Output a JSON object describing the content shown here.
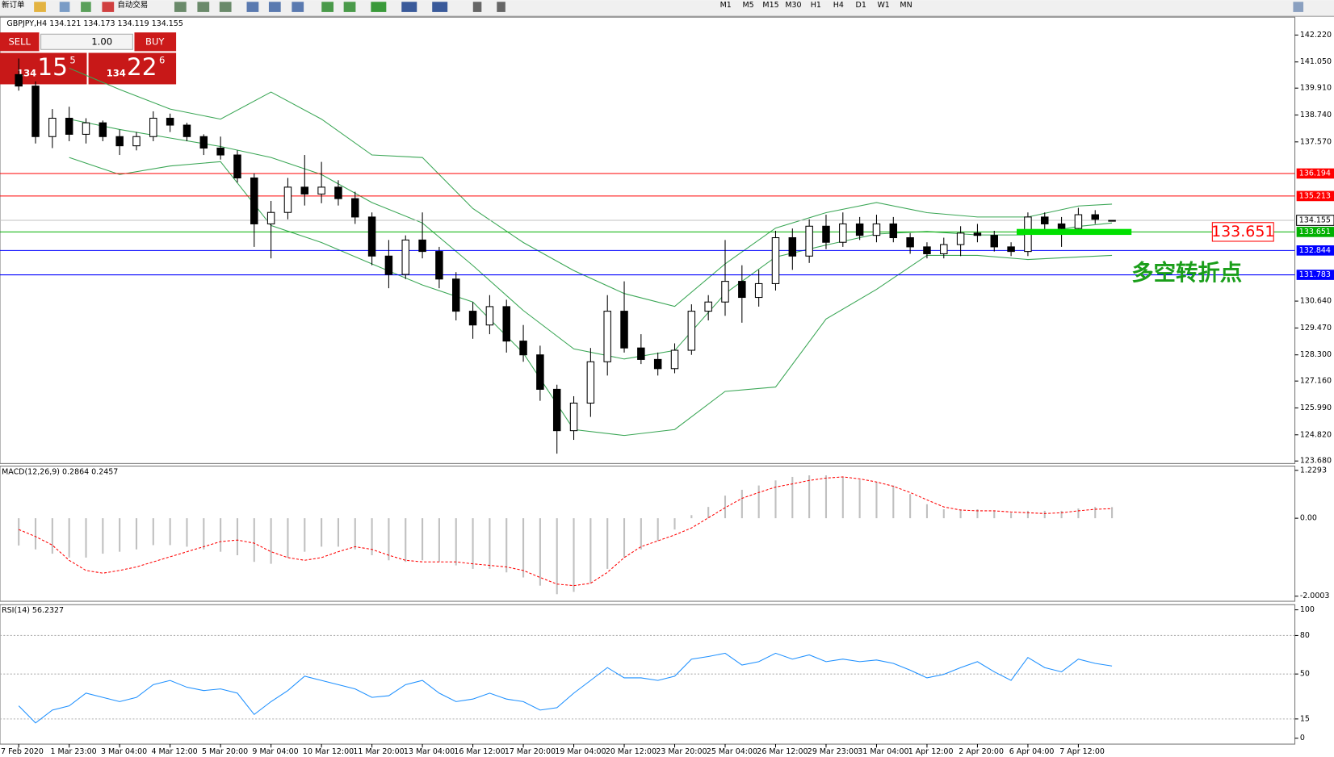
{
  "toolbar": {
    "new_order": "新订单",
    "auto_trading": "自动交易",
    "timeframes": [
      "M1",
      "M5",
      "M15",
      "M30",
      "H1",
      "H4",
      "D1",
      "W1",
      "MN"
    ]
  },
  "trade_panel": {
    "sell": "SELL",
    "lots": "1.00",
    "buy": "BUY",
    "bid": {
      "big": "134",
      "mid": "15",
      "small": "5"
    },
    "ask": {
      "big": "134",
      "mid": "22",
      "small": "6"
    }
  },
  "chart_data": [
    {
      "type": "candlestick",
      "title": "GBPJPY,H4  134.121 134.173 134.119 134.155",
      "categories": [
        "7 Feb 2020",
        null,
        null,
        "1 Mar 23:00",
        null,
        null,
        "3 Mar 04:00",
        null,
        null,
        "4 Mar 12:00",
        null,
        null,
        "5 Mar 20:00",
        null,
        null,
        "9 Mar 04:00",
        null,
        null,
        "10 Mar 12:00",
        null,
        null,
        "11 Mar 20:00",
        null,
        null,
        "13 Mar 04:00",
        null,
        null,
        "16 Mar 12:00",
        null,
        null,
        "17 Mar 20:00",
        null,
        null,
        "19 Mar 04:00",
        null,
        null,
        "20 Mar 12:00",
        null,
        null,
        "23 Mar 20:00",
        null,
        null,
        "25 Mar 04:00",
        null,
        null,
        "26 Mar 12:00",
        null,
        null,
        "29 Mar 23:00",
        null,
        null,
        "31 Mar 04:00",
        null,
        null,
        "1 Apr 12:00",
        null,
        null,
        "2 Apr 20:00",
        null,
        null,
        "6 Apr 04:00",
        null,
        null,
        "7 Apr 12:00",
        null,
        null
      ],
      "ohlc": [
        [
          140.5,
          141.2,
          139.8,
          140.0
        ],
        [
          140.0,
          140.2,
          137.5,
          137.8
        ],
        [
          137.8,
          139.0,
          137.3,
          138.6
        ],
        [
          138.6,
          139.1,
          137.6,
          137.9
        ],
        [
          137.9,
          138.6,
          137.5,
          138.4
        ],
        [
          138.4,
          138.5,
          137.6,
          137.8
        ],
        [
          137.8,
          138.1,
          137.0,
          137.4
        ],
        [
          137.4,
          138.0,
          137.2,
          137.8
        ],
        [
          137.8,
          138.9,
          137.6,
          138.6
        ],
        [
          138.6,
          138.8,
          138.0,
          138.3
        ],
        [
          138.3,
          138.4,
          137.6,
          137.8
        ],
        [
          137.8,
          137.9,
          137.0,
          137.3
        ],
        [
          137.3,
          137.8,
          136.8,
          137.0
        ],
        [
          137.0,
          137.2,
          135.8,
          136.0
        ],
        [
          136.0,
          136.2,
          133.0,
          134.0
        ],
        [
          134.0,
          135.0,
          132.5,
          134.5
        ],
        [
          134.5,
          136.0,
          134.2,
          135.6
        ],
        [
          135.6,
          137.0,
          134.8,
          135.3
        ],
        [
          135.3,
          136.7,
          134.9,
          135.6
        ],
        [
          135.6,
          135.9,
          134.8,
          135.1
        ],
        [
          135.1,
          135.4,
          134.0,
          134.3
        ],
        [
          134.3,
          134.5,
          132.2,
          132.6
        ],
        [
          132.6,
          133.3,
          131.2,
          131.8
        ],
        [
          131.8,
          133.5,
          131.6,
          133.3
        ],
        [
          133.3,
          134.5,
          132.5,
          132.8
        ],
        [
          132.8,
          133.0,
          131.2,
          131.6
        ],
        [
          131.6,
          131.9,
          129.8,
          130.2
        ],
        [
          130.2,
          130.6,
          129.0,
          129.6
        ],
        [
          129.6,
          130.9,
          129.2,
          130.4
        ],
        [
          130.4,
          130.7,
          128.4,
          128.9
        ],
        [
          128.9,
          129.6,
          128.0,
          128.3
        ],
        [
          128.3,
          128.7,
          126.3,
          126.8
        ],
        [
          126.8,
          127.0,
          124.0,
          125.0
        ],
        [
          125.0,
          126.5,
          124.6,
          126.2
        ],
        [
          126.2,
          128.6,
          125.6,
          128.0
        ],
        [
          128.0,
          130.9,
          127.4,
          130.2
        ],
        [
          130.2,
          131.5,
          128.4,
          128.6
        ],
        [
          128.6,
          129.2,
          127.9,
          128.1
        ],
        [
          128.1,
          128.4,
          127.4,
          127.7
        ],
        [
          127.7,
          128.8,
          127.5,
          128.5
        ],
        [
          128.5,
          130.5,
          128.3,
          130.2
        ],
        [
          130.2,
          130.9,
          129.8,
          130.6
        ],
        [
          130.6,
          133.3,
          130.0,
          131.5
        ],
        [
          131.5,
          132.2,
          129.7,
          130.8
        ],
        [
          130.8,
          132.0,
          130.4,
          131.4
        ],
        [
          131.4,
          133.7,
          131.1,
          133.4
        ],
        [
          133.4,
          133.8,
          132.0,
          132.6
        ],
        [
          132.6,
          134.2,
          132.3,
          133.9
        ],
        [
          133.9,
          134.4,
          132.9,
          133.2
        ],
        [
          133.2,
          134.5,
          133.0,
          134.0
        ],
        [
          134.0,
          134.3,
          133.3,
          133.5
        ],
        [
          133.5,
          134.4,
          133.2,
          134.0
        ],
        [
          134.0,
          134.3,
          133.2,
          133.4
        ],
        [
          133.4,
          133.6,
          132.7,
          133.0
        ],
        [
          133.0,
          133.2,
          132.5,
          132.7
        ],
        [
          132.7,
          133.4,
          132.5,
          133.1
        ],
        [
          133.1,
          133.9,
          132.6,
          133.6
        ],
        [
          133.6,
          134.0,
          133.2,
          133.5
        ],
        [
          133.5,
          133.7,
          132.8,
          133.0
        ],
        [
          133.0,
          133.2,
          132.6,
          132.8
        ],
        [
          132.8,
          134.5,
          132.6,
          134.3
        ],
        [
          134.3,
          134.5,
          133.7,
          134.0
        ],
        [
          134.0,
          134.3,
          133.0,
          133.8
        ],
        [
          133.8,
          134.7,
          133.6,
          134.4
        ],
        [
          134.4,
          134.6,
          134.0,
          134.2
        ],
        [
          134.121,
          134.173,
          134.119,
          134.155
        ]
      ],
      "bands": [
        {
          "color": "#3aa655",
          "x": [
            3,
            6,
            9,
            12,
            15,
            18,
            21,
            24,
            27,
            30,
            33,
            36,
            39,
            42,
            45,
            48,
            51,
            54,
            57,
            60,
            63,
            65
          ],
          "values": [
            140.78,
            139.85,
            139.0,
            138.56,
            139.74,
            138.56,
            137.0,
            136.89,
            134.67,
            133.19,
            131.97,
            130.97,
            130.41,
            132.26,
            133.82,
            134.49,
            134.93,
            134.49,
            134.3,
            134.3,
            134.78,
            134.86
          ]
        },
        {
          "color": "#3aa655",
          "x": [
            3,
            6,
            9,
            12,
            15,
            18,
            21,
            24,
            27,
            30,
            33,
            36,
            39,
            42,
            45,
            48,
            51,
            54,
            57,
            60,
            63,
            65
          ],
          "values": [
            138.56,
            138.11,
            137.74,
            137.37,
            136.89,
            136.15,
            134.93,
            134.04,
            132.19,
            130.23,
            128.56,
            128.12,
            128.49,
            130.97,
            132.56,
            133.08,
            133.56,
            133.67,
            133.52,
            133.52,
            133.89,
            134.04
          ]
        },
        {
          "color": "#3aa655",
          "x": [
            3,
            6,
            9,
            12,
            15,
            18,
            21,
            24,
            27,
            30,
            33,
            36,
            39,
            42,
            45,
            48,
            51,
            54,
            57,
            60,
            63,
            65
          ],
          "values": [
            136.89,
            136.15,
            136.52,
            136.71,
            133.93,
            133.19,
            132.26,
            131.34,
            130.6,
            128.38,
            125.05,
            124.79,
            125.05,
            126.71,
            126.9,
            129.86,
            131.15,
            132.63,
            132.63,
            132.45,
            132.56,
            132.63
          ]
        }
      ],
      "levels": [
        {
          "value": 136.194,
          "color": "#ff0000"
        },
        {
          "value": 135.213,
          "color": "#ff0000"
        },
        {
          "value": 133.651,
          "color": "#00b000"
        },
        {
          "value": 132.844,
          "color": "#0000ff"
        },
        {
          "value": 131.783,
          "color": "#0000ff"
        }
      ],
      "current_price": 134.155,
      "marker": {
        "value": 133.651,
        "color": "#00e000"
      },
      "annotation": {
        "text": "多空转折点",
        "color": "#1a9e1a"
      },
      "ylim": [
        123.57,
        143.0
      ],
      "yticks": [
        {
          "value": 142.22,
          "label": "142.220"
        },
        {
          "value": 141.05,
          "label": "141.050"
        },
        {
          "value": 139.91,
          "label": "139.910"
        },
        {
          "value": 138.74,
          "label": "138.740"
        },
        {
          "value": 137.57,
          "label": "137.570"
        },
        {
          "value": 130.64,
          "label": "130.640"
        },
        {
          "value": 129.47,
          "label": "129.470"
        },
        {
          "value": 128.3,
          "label": "128.300"
        },
        {
          "value": 127.16,
          "label": "127.160"
        },
        {
          "value": 125.99,
          "label": "125.990"
        },
        {
          "value": 124.82,
          "label": "124.820"
        },
        {
          "value": 123.68,
          "label": "123.680"
        }
      ]
    },
    {
      "type": "macd",
      "title": "MACD(12,26,9) 0.2864 0.2457",
      "values": [
        -0.7,
        -0.8,
        -0.91,
        -1.01,
        -1.01,
        -0.91,
        -0.86,
        -0.8,
        -0.69,
        -0.69,
        -0.73,
        -0.8,
        -0.86,
        -0.95,
        -1.12,
        -1.17,
        -1.01,
        -0.86,
        -0.73,
        -0.73,
        -0.8,
        -0.95,
        -1.08,
        -1.12,
        -1.08,
        -1.12,
        -1.21,
        -1.3,
        -1.3,
        -1.39,
        -1.52,
        -1.73,
        -1.95,
        -1.89,
        -1.67,
        -1.3,
        -1.01,
        -0.8,
        -0.58,
        -0.29,
        0.08,
        0.29,
        0.58,
        0.73,
        0.84,
        0.97,
        1.06,
        1.1,
        1.1,
        1.06,
        0.99,
        0.93,
        0.84,
        0.62,
        0.36,
        0.23,
        0.23,
        0.23,
        0.19,
        0.14,
        0.19,
        0.19,
        0.19,
        0.25,
        0.29,
        0.2864
      ],
      "signal": [
        -0.29,
        -0.47,
        -0.69,
        -1.08,
        -1.34,
        -1.41,
        -1.34,
        -1.25,
        -1.12,
        -0.99,
        -0.86,
        -0.73,
        -0.6,
        -0.56,
        -0.64,
        -0.86,
        -1.01,
        -1.08,
        -1.01,
        -0.86,
        -0.73,
        -0.8,
        -0.95,
        -1.08,
        -1.12,
        -1.12,
        -1.12,
        -1.17,
        -1.21,
        -1.25,
        -1.34,
        -1.52,
        -1.69,
        -1.73,
        -1.67,
        -1.39,
        -1.01,
        -0.73,
        -0.58,
        -0.43,
        -0.25,
        0.01,
        0.27,
        0.51,
        0.66,
        0.8,
        0.88,
        0.97,
        1.03,
        1.06,
        1.01,
        0.93,
        0.82,
        0.66,
        0.47,
        0.29,
        0.21,
        0.19,
        0.19,
        0.16,
        0.14,
        0.12,
        0.14,
        0.19,
        0.23,
        0.2457
      ],
      "color": "#c0c0c0",
      "signal_color": "#ff0000",
      "ylim": [
        -2.131,
        1.338
      ],
      "yticks": [
        1.2293,
        {
          "value": 0,
          "label": "0.00"
        },
        -2.0003
      ]
    },
    {
      "type": "rsi",
      "title": "RSI(14) 56.2327",
      "values": [
        25.2,
        11.9,
        21.9,
        25.2,
        35.1,
        31.8,
        28.5,
        31.8,
        41.7,
        45.0,
        39.7,
        37.1,
        38.4,
        35.1,
        18.5,
        28.5,
        37.1,
        48.3,
        45.0,
        41.7,
        38.4,
        31.8,
        33.1,
        41.7,
        45.0,
        35.1,
        28.5,
        30.5,
        35.1,
        30.5,
        28.5,
        21.9,
        23.8,
        35.1,
        45.0,
        55.0,
        47.0,
        47.0,
        45.0,
        48.3,
        61.6,
        63.6,
        66.2,
        57.0,
        59.6,
        66.2,
        61.6,
        64.9,
        59.6,
        61.6,
        59.6,
        60.9,
        58.3,
        53.0,
        47.0,
        49.7,
        55.0,
        59.6,
        51.7,
        45.0,
        62.9,
        55.0,
        51.7,
        61.6,
        58.3,
        56.2327
      ],
      "color": "#1e90ff",
      "ylim": [
        -4.6,
        104
      ],
      "yticks": [
        100,
        80,
        50,
        15,
        0
      ],
      "levels": [
        80,
        50,
        15
      ]
    }
  ]
}
